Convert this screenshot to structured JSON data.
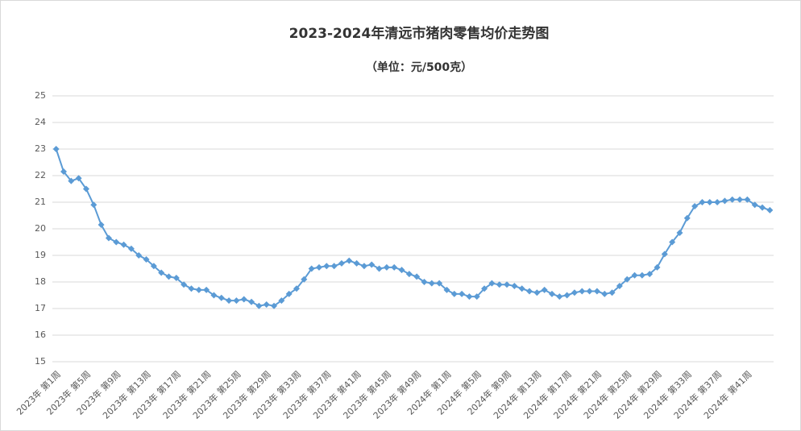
{
  "chart_data": {
    "type": "line",
    "title": "2023-2024年清远市猪肉零售均价走势图",
    "subtitle": "（单位：元/500克）",
    "categories": [
      "2023年 第1周",
      null,
      null,
      null,
      "2023年 第5周",
      null,
      null,
      null,
      "2023年 第9周",
      null,
      null,
      null,
      "2023年 第13周",
      null,
      null,
      null,
      "2023年 第17周",
      null,
      null,
      null,
      "2023年 第21周",
      null,
      null,
      null,
      "2023年 第25周",
      null,
      null,
      null,
      "2023年 第29周",
      null,
      null,
      null,
      "2023年 第33周",
      null,
      null,
      null,
      "2023年 第37周",
      null,
      null,
      null,
      "2023年 第41周",
      null,
      null,
      null,
      "2023年 第45周",
      null,
      null,
      null,
      "2023年 第49周",
      null,
      null,
      null,
      "2024年 第1周",
      null,
      null,
      null,
      "2024年 第5周",
      null,
      null,
      null,
      "2024年 第9周",
      null,
      null,
      null,
      "2024年 第13周",
      null,
      null,
      null,
      "2024年 第17周",
      null,
      null,
      null,
      "2024年 第21周",
      null,
      null,
      null,
      "2024年 第25周",
      null,
      null,
      null,
      "2024年 第29周",
      null,
      null,
      null,
      "2024年 第33周",
      null,
      null,
      null,
      "2024年 第37周",
      null,
      null,
      null,
      "2024年 第41周",
      null,
      null,
      null
    ],
    "series": [
      {
        "color": "#5b9bd5",
        "values": [
          23.0,
          22.15,
          21.8,
          21.9,
          21.5,
          20.9,
          20.15,
          19.65,
          19.5,
          19.4,
          19.25,
          19.0,
          18.85,
          18.6,
          18.35,
          18.2,
          18.15,
          17.9,
          17.75,
          17.7,
          17.7,
          17.5,
          17.4,
          17.3,
          17.3,
          17.35,
          17.25,
          17.1,
          17.15,
          17.1,
          17.3,
          17.55,
          17.75,
          18.1,
          18.5,
          18.55,
          18.6,
          18.6,
          18.7,
          18.8,
          18.7,
          18.6,
          18.65,
          18.5,
          18.55,
          18.55,
          18.45,
          18.3,
          18.2,
          18.0,
          17.95,
          17.95,
          17.7,
          17.55,
          17.55,
          17.45,
          17.45,
          17.75,
          17.95,
          17.9,
          17.9,
          17.85,
          17.75,
          17.65,
          17.6,
          17.7,
          17.55,
          17.45,
          17.5,
          17.6,
          17.65,
          17.65,
          17.65,
          17.55,
          17.6,
          17.85,
          18.1,
          18.25,
          18.25,
          18.3,
          18.55,
          19.05,
          19.5,
          19.85,
          20.4,
          20.85,
          21.0,
          21.0,
          21.0,
          21.05,
          21.1,
          21.1,
          21.1,
          20.9,
          20.8,
          20.7
        ]
      }
    ],
    "ylim": [
      15,
      25
    ],
    "yticks": [
      15,
      16,
      17,
      18,
      19,
      20,
      21,
      22,
      23,
      24,
      25
    ],
    "grid": true
  }
}
